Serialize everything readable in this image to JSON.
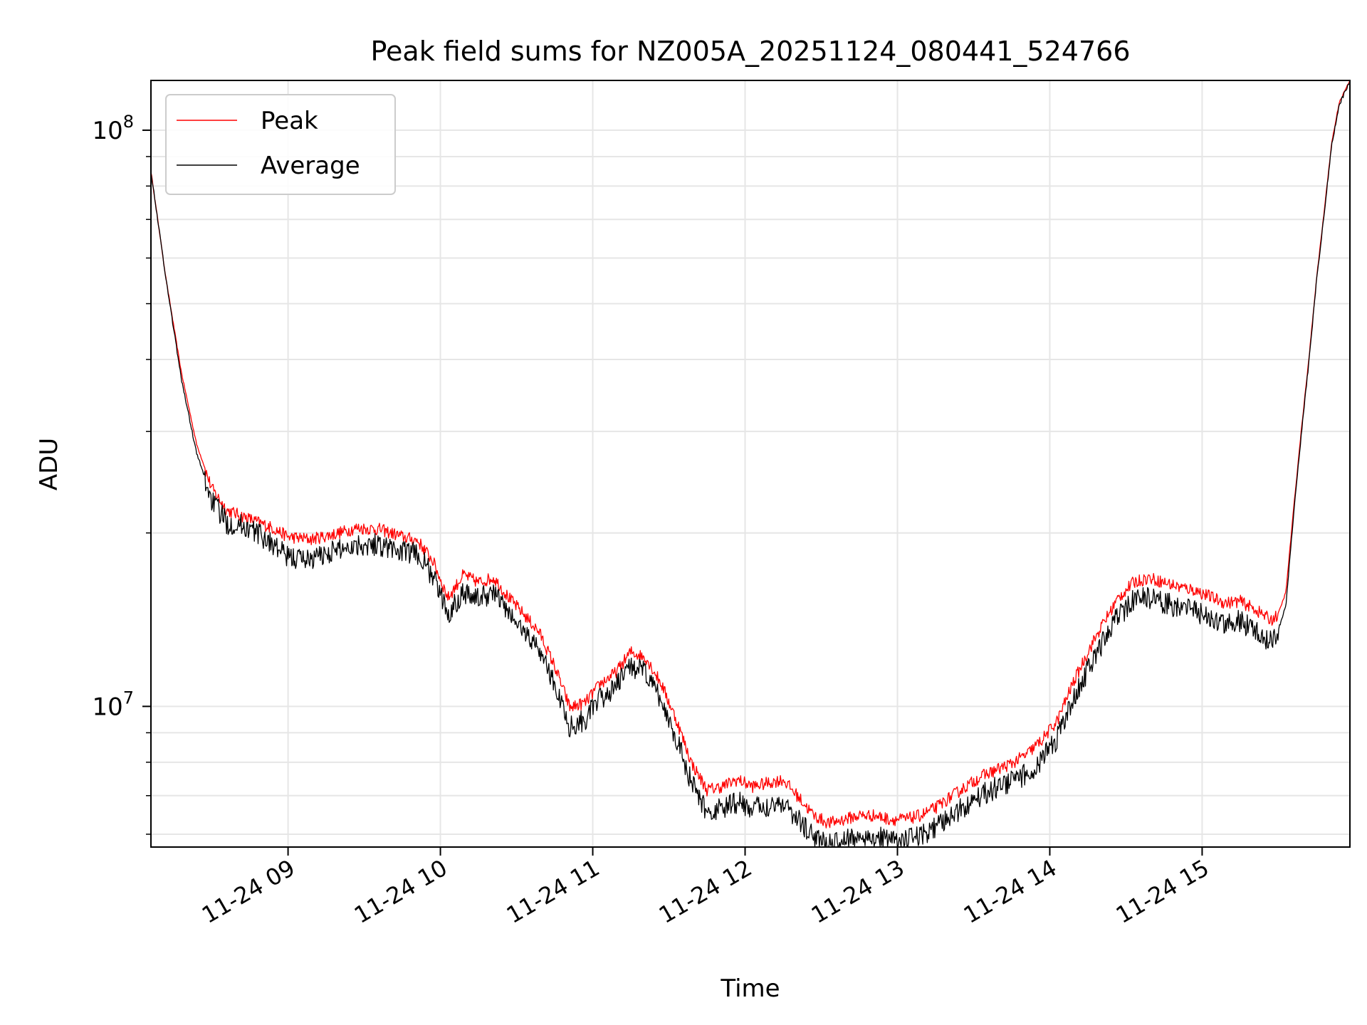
{
  "chart_data": {
    "type": "line",
    "title": "Peak field sums for NZ005A_20251124_080441_524766",
    "xlabel": "Time",
    "ylabel": "ADU",
    "yscale": "log",
    "ylim": [
      5700000,
      122000000
    ],
    "xlim": [
      8.1,
      15.97
    ],
    "x_unit": "hours on 2025-11-24",
    "grid": true,
    "legend_position": "top-left",
    "x_ticks": [
      {
        "value": 9,
        "label": "11-24 09"
      },
      {
        "value": 10,
        "label": "11-24 10"
      },
      {
        "value": 11,
        "label": "11-24 11"
      },
      {
        "value": 12,
        "label": "11-24 12"
      },
      {
        "value": 13,
        "label": "11-24 13"
      },
      {
        "value": 14,
        "label": "11-24 14"
      },
      {
        "value": 15,
        "label": "11-24 15"
      }
    ],
    "y_ticks": [
      {
        "value": 10000000,
        "base": "10",
        "exp": "7"
      },
      {
        "value": 100000000,
        "base": "10",
        "exp": "8"
      }
    ],
    "y_minor_ticks": [
      6000000,
      7000000,
      8000000,
      9000000,
      20000000,
      30000000,
      40000000,
      50000000,
      60000000,
      70000000,
      80000000,
      90000000
    ],
    "series": [
      {
        "name": "Peak",
        "color": "#ff0000",
        "noise": 0.05,
        "x": [
          8.1,
          8.2,
          8.3,
          8.4,
          8.5,
          8.6,
          8.7,
          8.8,
          8.9,
          9.0,
          9.15,
          9.3,
          9.45,
          9.6,
          9.75,
          9.85,
          9.95,
          10.05,
          10.15,
          10.25,
          10.35,
          10.45,
          10.55,
          10.65,
          10.75,
          10.85,
          10.95,
          11.05,
          11.15,
          11.25,
          11.35,
          11.45,
          11.55,
          11.65,
          11.75,
          11.85,
          11.95,
          12.05,
          12.15,
          12.25,
          12.35,
          12.45,
          12.55,
          12.65,
          12.75,
          12.85,
          12.95,
          13.05,
          13.15,
          13.25,
          13.35,
          13.45,
          13.55,
          13.65,
          13.75,
          13.85,
          13.95,
          14.05,
          14.15,
          14.25,
          14.35,
          14.45,
          14.55,
          14.65,
          14.75,
          14.85,
          14.95,
          15.05,
          15.15,
          15.25,
          15.35,
          15.45,
          15.5,
          15.55,
          15.6,
          15.65,
          15.7,
          15.75,
          15.8,
          15.85,
          15.9,
          15.97
        ],
        "y": [
          85000000,
          55000000,
          38000000,
          28500000,
          24000000,
          22000000,
          21500000,
          21000000,
          20500000,
          19800000,
          19600000,
          20000000,
          20500000,
          20400000,
          19800000,
          19500000,
          18000000,
          15500000,
          17000000,
          16500000,
          16800000,
          15500000,
          14500000,
          13500000,
          11800000,
          10000000,
          10200000,
          11000000,
          11500000,
          12500000,
          12200000,
          11000000,
          9500000,
          8000000,
          7200000,
          7300000,
          7500000,
          7300000,
          7400000,
          7500000,
          7000000,
          6500000,
          6300000,
          6400000,
          6500000,
          6500000,
          6400000,
          6400000,
          6500000,
          6700000,
          7000000,
          7300000,
          7600000,
          7800000,
          8000000,
          8300000,
          8800000,
          9500000,
          11000000,
          12500000,
          14000000,
          15500000,
          16500000,
          16800000,
          16500000,
          16200000,
          16000000,
          15600000,
          15200000,
          15300000,
          14800000,
          14200000,
          14500000,
          15800000,
          22000000,
          30000000,
          40000000,
          55000000,
          72000000,
          95000000,
          112000000,
          122000000
        ]
      },
      {
        "name": "Average",
        "color": "#000000",
        "noise": 0.09,
        "x": [
          8.1,
          8.2,
          8.3,
          8.4,
          8.5,
          8.6,
          8.7,
          8.8,
          8.9,
          9.0,
          9.15,
          9.3,
          9.45,
          9.6,
          9.75,
          9.85,
          9.95,
          10.05,
          10.15,
          10.25,
          10.35,
          10.45,
          10.55,
          10.65,
          10.75,
          10.85,
          10.95,
          11.05,
          11.15,
          11.25,
          11.35,
          11.45,
          11.55,
          11.65,
          11.75,
          11.85,
          11.95,
          12.05,
          12.15,
          12.25,
          12.35,
          12.45,
          12.55,
          12.65,
          12.75,
          12.85,
          12.95,
          13.05,
          13.15,
          13.25,
          13.35,
          13.45,
          13.55,
          13.65,
          13.75,
          13.85,
          13.95,
          14.05,
          14.15,
          14.25,
          14.35,
          14.45,
          14.55,
          14.65,
          14.75,
          14.85,
          14.95,
          15.05,
          15.15,
          15.25,
          15.35,
          15.45,
          15.5,
          15.55,
          15.6,
          15.65,
          15.7,
          15.75,
          15.8,
          15.85,
          15.9,
          15.97
        ],
        "y": [
          85000000,
          55000000,
          37000000,
          27500000,
          23000000,
          21000000,
          20800000,
          20200000,
          19300000,
          18300000,
          18200000,
          18800000,
          19300000,
          19300000,
          18700000,
          18600000,
          17000000,
          14600000,
          16000000,
          15500000,
          16000000,
          14600000,
          13600000,
          12700000,
          11000000,
          9300000,
          9600000,
          10400000,
          10900000,
          11900000,
          11500000,
          10300000,
          8900000,
          7400000,
          6600000,
          6700000,
          6900000,
          6700000,
          6800000,
          6900000,
          6400000,
          6000000,
          5800000,
          5900000,
          6000000,
          6000000,
          5900000,
          5900000,
          6000000,
          6200000,
          6500000,
          6800000,
          7100000,
          7300000,
          7500000,
          7700000,
          8200000,
          8900000,
          10300000,
          11700000,
          13100000,
          14500000,
          15400000,
          15600000,
          15300000,
          15000000,
          14800000,
          14400000,
          14000000,
          14200000,
          13700000,
          13100000,
          13600000,
          15000000,
          21500000,
          29500000,
          39500000,
          54500000,
          71500000,
          94000000,
          111000000,
          121500000
        ]
      }
    ]
  }
}
